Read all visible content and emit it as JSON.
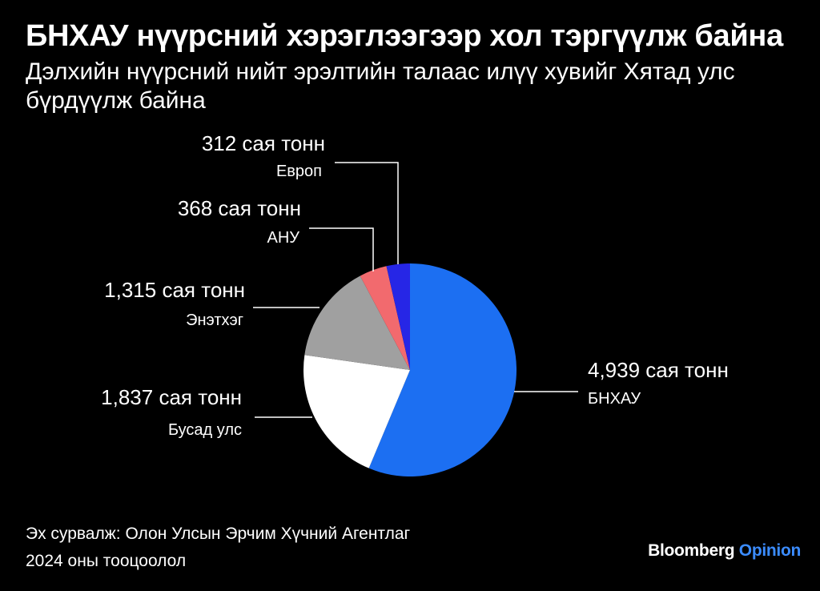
{
  "title": "БНХАУ нүүрсний хэрэглээгээр хол тэргүүлж байна",
  "subtitle": "Дэлхийн нүүрсний нийт эрэлтийн талаас илүү хувийг Хятад улс бүрдүүлж байна",
  "footer": {
    "source": "Эх сурвалж: Олон Улсын Эрчим Хүчний Агентлаг",
    "note": "2024 оны тооцоолол"
  },
  "brand": {
    "name": "Bloomberg",
    "product": "Opinion",
    "accent_color": "#3b8cff"
  },
  "chart_data": {
    "type": "pie",
    "title": "",
    "unit": "сая тонн",
    "slices": [
      {
        "category": "БНХАУ",
        "value": 4939,
        "value_label": "4,939 сая тонн",
        "color": "#1c6ff2"
      },
      {
        "category": "Бусад улс",
        "value": 1837,
        "value_label": "1,837 сая тонн",
        "color": "#ffffff"
      },
      {
        "category": "Энэтхэг",
        "value": 1315,
        "value_label": "1,315 сая тонн",
        "color": "#a0a0a0"
      },
      {
        "category": "АНУ",
        "value": 368,
        "value_label": "368 сая тонн",
        "color": "#f26a6e"
      },
      {
        "category": "Европ",
        "value": 312,
        "value_label": "312 сая тонн",
        "color": "#2626e6"
      }
    ]
  }
}
